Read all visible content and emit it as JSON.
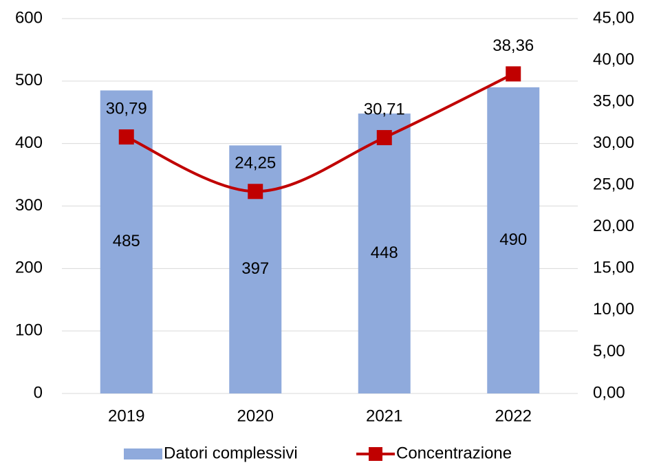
{
  "chart_data": {
    "type": "bar",
    "categories": [
      "2019",
      "2020",
      "2021",
      "2022"
    ],
    "series": [
      {
        "name": "Datori complessivi",
        "type": "bar",
        "color": "#8faadc",
        "values": [
          485,
          397,
          448,
          490
        ]
      },
      {
        "name": "Concentrazione",
        "type": "line",
        "axis": "y2",
        "color": "#c00000",
        "values": [
          30.79,
          24.25,
          30.71,
          38.36
        ],
        "value_labels": [
          "30,79",
          "24,25",
          "30,71",
          "38,36"
        ]
      }
    ],
    "ylim": [
      0,
      600
    ],
    "yticks": [
      0,
      100,
      200,
      300,
      400,
      500,
      600
    ],
    "y2lim": [
      0,
      45
    ],
    "y2ticks": [
      {
        "value": 0,
        "label": "0,00"
      },
      {
        "value": 5,
        "label": "5,00"
      },
      {
        "value": 10,
        "label": "10,00"
      },
      {
        "value": 15,
        "label": "15,00"
      },
      {
        "value": 20,
        "label": "20,00"
      },
      {
        "value": 25,
        "label": "25,00"
      },
      {
        "value": 30,
        "label": "30,00"
      },
      {
        "value": 35,
        "label": "35,00"
      },
      {
        "value": 40,
        "label": "40,00"
      },
      {
        "value": 45,
        "label": "45,00"
      }
    ],
    "grid": true,
    "legend": "bottom"
  }
}
